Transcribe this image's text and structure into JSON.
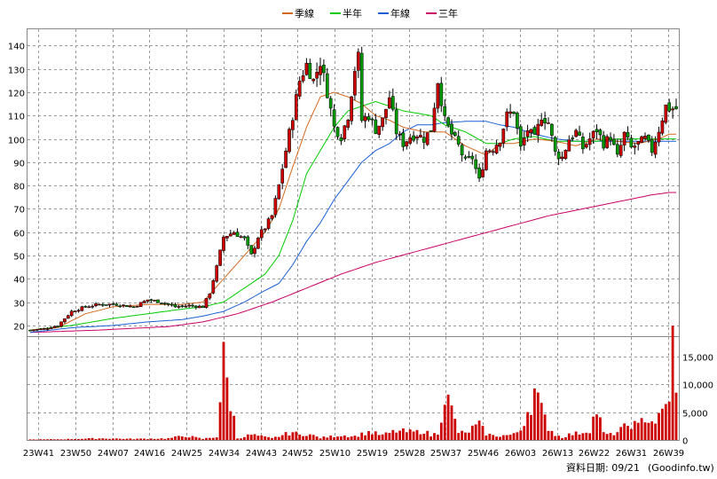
{
  "chart_data": [
    {
      "type": "candlestick",
      "title": "",
      "xlabel": "",
      "ylabel": "",
      "ylim": [
        15,
        147
      ],
      "y_ticks": [
        20,
        30,
        40,
        50,
        60,
        70,
        80,
        90,
        100,
        110,
        120,
        130,
        140
      ],
      "grid": true,
      "legend_position": "top-center",
      "x_ticks": [
        "23W41",
        "23W50",
        "24W07",
        "24W16",
        "24W25",
        "24W34",
        "24W43",
        "24W52",
        "25W10",
        "25W19",
        "25W28",
        "25W37",
        "25W46",
        "26W03",
        "26W13",
        "26W22",
        "26W31",
        "26W39"
      ],
      "weeks": 156,
      "colors": {
        "up": "#cc0000",
        "down": "#009900",
        "ma_quarter": "#d2691e",
        "ma_half": "#00cc00",
        "ma_year": "#1a5fd6",
        "ma_3y": "#cc0066"
      },
      "legend": [
        {
          "name": "季線",
          "color": "#d2691e"
        },
        {
          "name": "半年",
          "color": "#00cc00"
        },
        {
          "name": "年線",
          "color": "#1a5fd6"
        },
        {
          "name": "三年",
          "color": "#cc0066"
        }
      ],
      "close_anchors": [
        [
          0,
          18
        ],
        [
          4,
          18.5
        ],
        [
          8,
          20
        ],
        [
          12,
          26
        ],
        [
          16,
          28
        ],
        [
          20,
          29
        ],
        [
          25,
          29
        ],
        [
          30,
          28
        ],
        [
          34,
          31
        ],
        [
          38,
          30
        ],
        [
          42,
          28
        ],
        [
          46,
          28.5
        ],
        [
          50,
          28
        ],
        [
          52,
          34
        ],
        [
          54,
          45
        ],
        [
          56,
          58
        ],
        [
          59,
          60
        ],
        [
          62,
          57
        ],
        [
          64,
          50
        ],
        [
          66,
          58
        ],
        [
          68,
          62
        ],
        [
          70,
          67
        ],
        [
          72,
          80
        ],
        [
          74,
          95
        ],
        [
          76,
          110
        ],
        [
          78,
          125
        ],
        [
          80,
          132
        ],
        [
          82,
          125
        ],
        [
          84,
          133
        ],
        [
          86,
          120
        ],
        [
          88,
          105
        ],
        [
          90,
          101
        ],
        [
          92,
          110
        ],
        [
          94,
          130
        ],
        [
          95,
          135
        ],
        [
          96,
          108
        ],
        [
          98,
          110
        ],
        [
          100,
          104
        ],
        [
          102,
          108
        ],
        [
          104,
          118
        ],
        [
          106,
          103
        ],
        [
          108,
          98
        ],
        [
          110,
          101
        ],
        [
          112,
          102
        ],
        [
          114,
          100
        ],
        [
          116,
          104
        ],
        [
          118,
          125
        ],
        [
          120,
          108
        ],
        [
          122,
          102
        ],
        [
          124,
          97
        ],
        [
          126,
          90
        ],
        [
          128,
          92
        ],
        [
          130,
          82
        ],
        [
          132,
          95
        ],
        [
          134,
          96
        ],
        [
          136,
          100
        ],
        [
          138,
          110
        ],
        [
          140,
          112
        ],
        [
          142,
          96
        ],
        [
          144,
          104
        ],
        [
          146,
          100
        ],
        [
          148,
          110
        ],
        [
          150,
          107
        ],
        [
          152,
          94
        ],
        [
          154,
          92
        ],
        [
          156,
          100
        ],
        [
          158,
          103
        ],
        [
          160,
          96
        ],
        [
          162,
          100
        ],
        [
          164,
          104
        ],
        [
          166,
          98
        ],
        [
          168,
          101
        ],
        [
          170,
          92
        ],
        [
          172,
          102
        ],
        [
          174,
          96
        ],
        [
          176,
          98
        ],
        [
          178,
          100
        ],
        [
          180,
          95
        ],
        [
          182,
          104
        ],
        [
          184,
          114
        ],
        [
          185,
          113
        ]
      ],
      "ma_quarter": [
        [
          0,
          18
        ],
        [
          8,
          19
        ],
        [
          16,
          25
        ],
        [
          24,
          28
        ],
        [
          34,
          29
        ],
        [
          44,
          29
        ],
        [
          50,
          30
        ],
        [
          56,
          40
        ],
        [
          62,
          50
        ],
        [
          68,
          60
        ],
        [
          72,
          70
        ],
        [
          76,
          88
        ],
        [
          80,
          105
        ],
        [
          84,
          118
        ],
        [
          88,
          120
        ],
        [
          92,
          118
        ],
        [
          96,
          115
        ],
        [
          100,
          110
        ],
        [
          104,
          108
        ],
        [
          108,
          105
        ],
        [
          114,
          103
        ],
        [
          120,
          103
        ],
        [
          126,
          97
        ],
        [
          132,
          93
        ],
        [
          136,
          98
        ],
        [
          140,
          98
        ],
        [
          146,
          100
        ],
        [
          152,
          99
        ],
        [
          158,
          97
        ],
        [
          164,
          100
        ],
        [
          170,
          99
        ],
        [
          176,
          98
        ],
        [
          182,
          100
        ],
        [
          185,
          102
        ]
      ],
      "ma_half": [
        [
          0,
          18
        ],
        [
          12,
          20
        ],
        [
          24,
          23
        ],
        [
          34,
          25
        ],
        [
          44,
          27
        ],
        [
          50,
          28
        ],
        [
          56,
          30
        ],
        [
          62,
          36
        ],
        [
          68,
          42
        ],
        [
          72,
          50
        ],
        [
          76,
          65
        ],
        [
          80,
          85
        ],
        [
          84,
          95
        ],
        [
          88,
          105
        ],
        [
          92,
          112
        ],
        [
          96,
          114
        ],
        [
          100,
          116
        ],
        [
          104,
          114
        ],
        [
          108,
          112
        ],
        [
          112,
          111
        ],
        [
          116,
          110
        ],
        [
          120,
          106
        ],
        [
          126,
          103
        ],
        [
          132,
          98
        ],
        [
          136,
          98
        ],
        [
          140,
          100
        ],
        [
          146,
          101
        ],
        [
          152,
          99
        ],
        [
          158,
          99
        ],
        [
          164,
          99
        ],
        [
          170,
          100
        ],
        [
          176,
          100
        ],
        [
          182,
          100
        ],
        [
          185,
          100
        ]
      ],
      "ma_year": [
        [
          0,
          17
        ],
        [
          12,
          19
        ],
        [
          24,
          20
        ],
        [
          34,
          21.5
        ],
        [
          44,
          22.5
        ],
        [
          50,
          24
        ],
        [
          56,
          26
        ],
        [
          62,
          30
        ],
        [
          68,
          35
        ],
        [
          72,
          38
        ],
        [
          76,
          46
        ],
        [
          80,
          56
        ],
        [
          84,
          64
        ],
        [
          88,
          74
        ],
        [
          92,
          82
        ],
        [
          96,
          90
        ],
        [
          100,
          95
        ],
        [
          104,
          98
        ],
        [
          108,
          103
        ],
        [
          112,
          106
        ],
        [
          116,
          106
        ],
        [
          120,
          107
        ],
        [
          126,
          107.5
        ],
        [
          132,
          107.5
        ],
        [
          136,
          106
        ],
        [
          140,
          105
        ],
        [
          146,
          102
        ],
        [
          152,
          100
        ],
        [
          158,
          99
        ],
        [
          164,
          99
        ],
        [
          170,
          99
        ],
        [
          176,
          99
        ],
        [
          182,
          99
        ],
        [
          185,
          99
        ]
      ],
      "ma_3y": [
        [
          0,
          17
        ],
        [
          20,
          18
        ],
        [
          40,
          19.5
        ],
        [
          50,
          21.5
        ],
        [
          60,
          25
        ],
        [
          70,
          30
        ],
        [
          80,
          36
        ],
        [
          90,
          42
        ],
        [
          100,
          47
        ],
        [
          110,
          51
        ],
        [
          120,
          55
        ],
        [
          130,
          59
        ],
        [
          140,
          63
        ],
        [
          150,
          67
        ],
        [
          160,
          70
        ],
        [
          170,
          73
        ],
        [
          180,
          76
        ],
        [
          185,
          77
        ]
      ]
    },
    {
      "type": "bar",
      "title": "",
      "xlabel": "",
      "ylabel": "",
      "ylim": [
        0,
        18500
      ],
      "y_ticks": [
        0,
        5000,
        10000,
        15000
      ],
      "y_tick_labels": [
        "0",
        "5,000",
        "10,000",
        "15,000"
      ],
      "color": "#cc0000",
      "volume_anchors": [
        [
          0,
          80
        ],
        [
          10,
          150
        ],
        [
          20,
          300
        ],
        [
          30,
          200
        ],
        [
          40,
          300
        ],
        [
          45,
          800
        ],
        [
          50,
          200
        ],
        [
          54,
          600
        ],
        [
          56,
          14500
        ],
        [
          60,
          300
        ],
        [
          64,
          1000
        ],
        [
          70,
          300
        ],
        [
          76,
          1500
        ],
        [
          78,
          900
        ],
        [
          80,
          1200
        ],
        [
          84,
          400
        ],
        [
          90,
          900
        ],
        [
          94,
          700
        ],
        [
          98,
          1500
        ],
        [
          102,
          900
        ],
        [
          106,
          1700
        ],
        [
          110,
          1500
        ],
        [
          112,
          1500
        ],
        [
          114,
          1800
        ],
        [
          116,
          800
        ],
        [
          118,
          1400
        ],
        [
          120,
          8800
        ],
        [
          122,
          5500
        ],
        [
          124,
          1500
        ],
        [
          126,
          1200
        ],
        [
          128,
          2200
        ],
        [
          130,
          2800
        ],
        [
          132,
          1200
        ],
        [
          134,
          800
        ],
        [
          136,
          800
        ],
        [
          140,
          1000
        ],
        [
          142,
          2000
        ],
        [
          146,
          9200
        ],
        [
          148,
          5400
        ],
        [
          150,
          2500
        ],
        [
          152,
          1000
        ],
        [
          154,
          500
        ],
        [
          156,
          1000
        ],
        [
          158,
          1200
        ],
        [
          160,
          1500
        ],
        [
          162,
          2000
        ],
        [
          164,
          5800
        ],
        [
          166,
          1200
        ],
        [
          168,
          1000
        ],
        [
          170,
          1500
        ],
        [
          172,
          2300
        ],
        [
          174,
          3200
        ],
        [
          176,
          2500
        ],
        [
          178,
          4500
        ],
        [
          180,
          3500
        ],
        [
          182,
          4000
        ],
        [
          184,
          6200
        ],
        [
          185,
          9000
        ],
        [
          186,
          18000
        ],
        [
          187,
          8000
        ]
      ]
    }
  ],
  "footer": {
    "date_label": "資料日期: 09/21",
    "source": "(Goodinfo.tw)"
  }
}
